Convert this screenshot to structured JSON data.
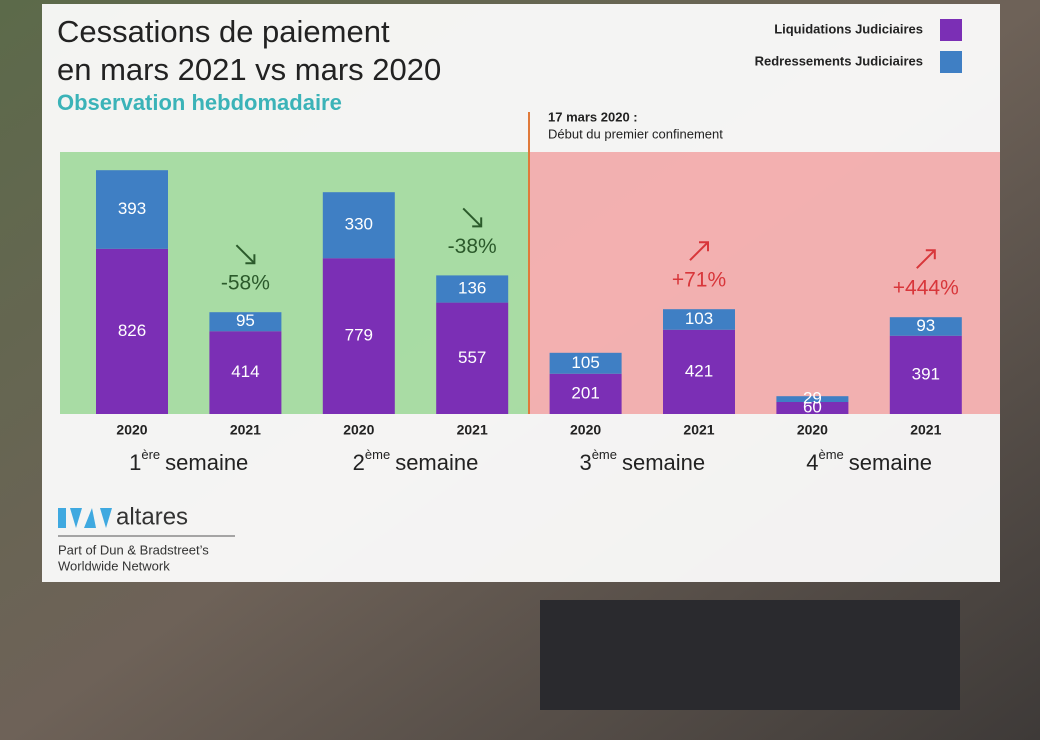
{
  "chart_data": {
    "type": "bar",
    "stacked": true,
    "title": [
      "Cessations de paiement",
      "en mars 2021 vs mars 2020"
    ],
    "subtitle": "Observation hebdomadaire",
    "annotation": [
      "17 mars 2020 :",
      "Début du premier confinement"
    ],
    "categories": [
      "2020",
      "2021",
      "2020",
      "2021",
      "2020",
      "2021",
      "2020",
      "2021"
    ],
    "groups": [
      {
        "label": [
          "1",
          "ère",
          "semaine"
        ],
        "change": "-58%"
      },
      {
        "label": [
          "2",
          "ème",
          "semaine"
        ],
        "change": "-38%"
      },
      {
        "label": [
          "3",
          "ème",
          "semaine"
        ],
        "change": "+71%"
      },
      {
        "label": [
          "4",
          "ème",
          "semaine"
        ],
        "change": "+444%"
      }
    ],
    "series": [
      {
        "name": "Liquidations Judiciaires",
        "color": "#7b2fb5",
        "values": [
          826,
          414,
          779,
          557,
          201,
          421,
          60,
          391
        ]
      },
      {
        "name": "Redressements Judiciaires",
        "color": "#3f7fc4",
        "values": [
          393,
          95,
          330,
          136,
          105,
          103,
          29,
          93
        ]
      }
    ]
  },
  "logo": {
    "name": "altares",
    "tagline": [
      "Part of Dun & Bradstreet’s",
      "Worldwide Network"
    ]
  }
}
